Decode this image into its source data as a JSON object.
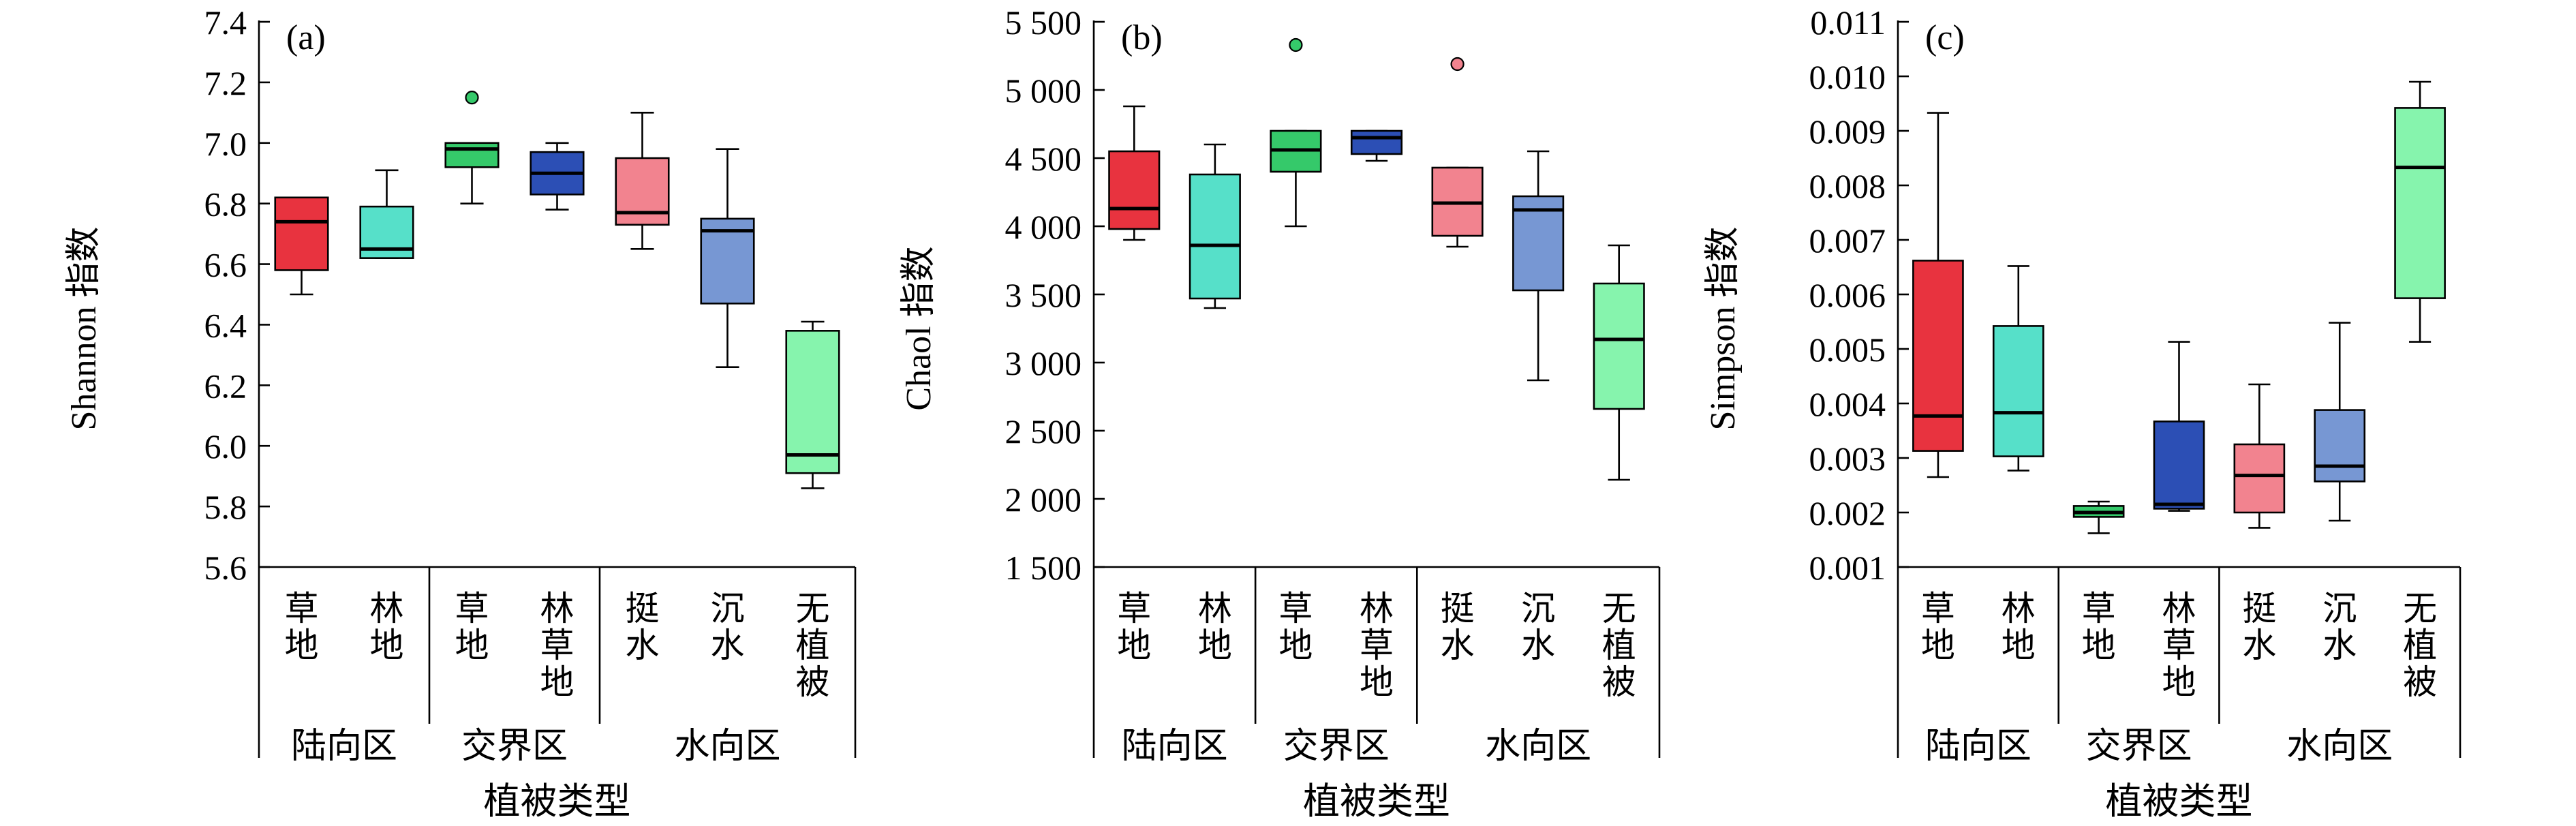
{
  "figure": {
    "xlabel": "植被类型",
    "categories": [
      "草地",
      "林地",
      "草地",
      "林草地",
      "挺水",
      "沉水",
      "无植被"
    ],
    "groups": [
      {
        "label": "陆向区",
        "span": [
          0,
          1
        ]
      },
      {
        "label": "交界区",
        "span": [
          2,
          3
        ]
      },
      {
        "label": "水向区",
        "span": [
          4,
          6
        ]
      }
    ],
    "colors": [
      "#e8333f",
      "#56e0c9",
      "#35c96a",
      "#2c4fb5",
      "#f2838f",
      "#7797d3",
      "#86f4ad"
    ]
  },
  "chart_data": [
    {
      "type": "box",
      "panel_label": "(a)",
      "ylabel": "Shannon 指数",
      "ylim": [
        5.6,
        7.4
      ],
      "yticks": [
        5.6,
        5.8,
        6.0,
        6.2,
        6.4,
        6.6,
        6.8,
        7.0,
        7.2,
        7.4
      ],
      "ytick_labels": [
        "5.6",
        "5.8",
        "6.0",
        "6.2",
        "6.4",
        "6.6",
        "6.8",
        "7.0",
        "7.2",
        "7.4"
      ],
      "boxes": [
        {
          "min": 6.5,
          "q1": 6.58,
          "median": 6.74,
          "q3": 6.82,
          "max": 6.82,
          "outliers": []
        },
        {
          "min": 6.62,
          "q1": 6.62,
          "median": 6.65,
          "q3": 6.79,
          "max": 6.91,
          "outliers": []
        },
        {
          "min": 6.8,
          "q1": 6.92,
          "median": 6.98,
          "q3": 7.0,
          "max": 7.0,
          "outliers": [
            7.15
          ]
        },
        {
          "min": 6.78,
          "q1": 6.83,
          "median": 6.9,
          "q3": 6.97,
          "max": 7.0,
          "outliers": []
        },
        {
          "min": 6.65,
          "q1": 6.73,
          "median": 6.77,
          "q3": 6.95,
          "max": 7.1,
          "outliers": []
        },
        {
          "min": 6.26,
          "q1": 6.47,
          "median": 6.71,
          "q3": 6.75,
          "max": 6.98,
          "outliers": []
        },
        {
          "min": 5.86,
          "q1": 5.91,
          "median": 5.97,
          "q3": 6.38,
          "max": 6.41,
          "outliers": []
        }
      ]
    },
    {
      "type": "box",
      "panel_label": "(b)",
      "ylabel": "Chaol 指数",
      "ylim": [
        1500,
        5500
      ],
      "yticks": [
        1500,
        2000,
        2500,
        3000,
        3500,
        4000,
        4500,
        5000,
        5500
      ],
      "ytick_labels": [
        "1 500",
        "2 000",
        "2 500",
        "3 000",
        "3 500",
        "4 000",
        "4 500",
        "5 000",
        "5 500"
      ],
      "boxes": [
        {
          "min": 3900,
          "q1": 3980,
          "median": 4130,
          "q3": 4550,
          "max": 4880,
          "outliers": []
        },
        {
          "min": 3400,
          "q1": 3470,
          "median": 3860,
          "q3": 4380,
          "max": 4600,
          "outliers": []
        },
        {
          "min": 4000,
          "q1": 4400,
          "median": 4560,
          "q3": 4700,
          "max": 4700,
          "outliers": [
            5330
          ]
        },
        {
          "min": 4480,
          "q1": 4530,
          "median": 4650,
          "q3": 4700,
          "max": 4700,
          "outliers": []
        },
        {
          "min": 3850,
          "q1": 3930,
          "median": 4170,
          "q3": 4430,
          "max": 4430,
          "outliers": [
            5190
          ]
        },
        {
          "min": 2870,
          "q1": 3530,
          "median": 4120,
          "q3": 4220,
          "max": 4550,
          "outliers": []
        },
        {
          "min": 2140,
          "q1": 2660,
          "median": 3170,
          "q3": 3580,
          "max": 3860,
          "outliers": []
        }
      ]
    },
    {
      "type": "box",
      "panel_label": "(c)",
      "ylabel": "Simpson 指数",
      "ylim": [
        0.001,
        0.011
      ],
      "yticks": [
        0.001,
        0.002,
        0.003,
        0.004,
        0.005,
        0.006,
        0.007,
        0.008,
        0.009,
        0.01,
        0.011
      ],
      "ytick_labels": [
        "0.001",
        "0.002",
        "0.003",
        "0.004",
        "0.005",
        "0.006",
        "0.007",
        "0.008",
        "0.009",
        "0.010",
        "0.011"
      ],
      "boxes": [
        {
          "min": 0.00265,
          "q1": 0.00313,
          "median": 0.00377,
          "q3": 0.00662,
          "max": 0.00933,
          "outliers": []
        },
        {
          "min": 0.00277,
          "q1": 0.00303,
          "median": 0.00383,
          "q3": 0.00542,
          "max": 0.00652,
          "outliers": []
        },
        {
          "min": 0.00162,
          "q1": 0.00192,
          "median": 0.002,
          "q3": 0.00212,
          "max": 0.0022,
          "outliers": []
        },
        {
          "min": 0.00203,
          "q1": 0.00207,
          "median": 0.00215,
          "q3": 0.00367,
          "max": 0.00513,
          "outliers": []
        },
        {
          "min": 0.00172,
          "q1": 0.002,
          "median": 0.00268,
          "q3": 0.00325,
          "max": 0.00435,
          "outliers": []
        },
        {
          "min": 0.00185,
          "q1": 0.00257,
          "median": 0.00285,
          "q3": 0.00388,
          "max": 0.00548,
          "outliers": []
        },
        {
          "min": 0.00513,
          "q1": 0.00593,
          "median": 0.00833,
          "q3": 0.00942,
          "max": 0.0099,
          "outliers": []
        }
      ]
    }
  ]
}
